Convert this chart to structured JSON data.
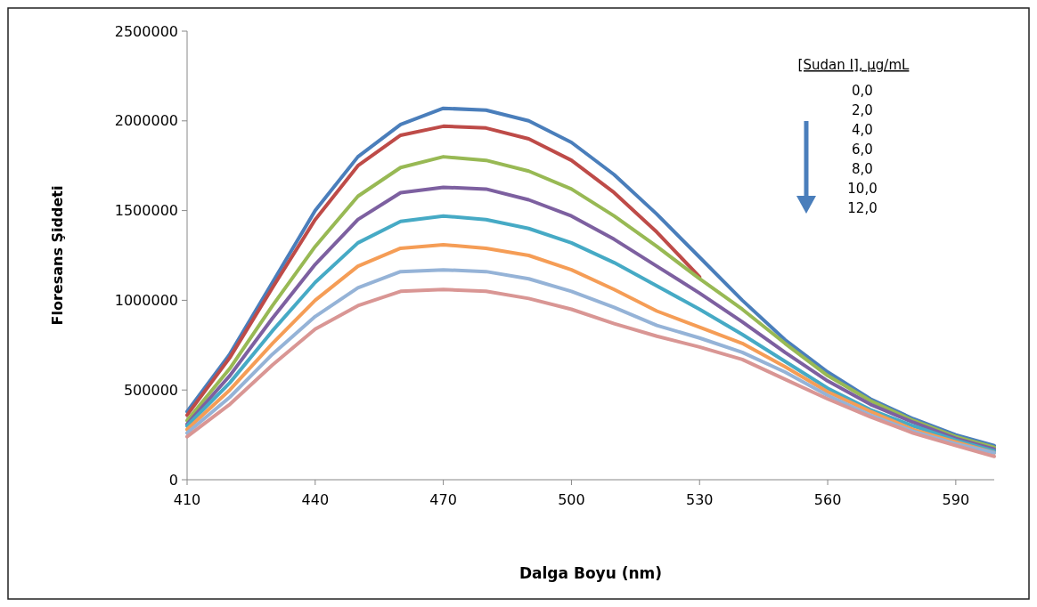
{
  "chart_data": {
    "type": "line",
    "xlabel": "Dalga Boyu (nm)",
    "ylabel": "Floresans Şiddeti",
    "legend_title": "[Sudan I], µg/mL",
    "annotations": [
      "0,0",
      "2,0",
      "4,0",
      "6,0",
      "8,0",
      "10,0",
      "12,0"
    ],
    "x": [
      410,
      420,
      430,
      440,
      450,
      460,
      470,
      480,
      490,
      500,
      510,
      520,
      530,
      540,
      550,
      560,
      570,
      580,
      590,
      599
    ],
    "xlim": [
      410,
      599
    ],
    "xticks": [
      410,
      440,
      470,
      500,
      530,
      560,
      590
    ],
    "ylim": [
      0,
      2500000
    ],
    "yticks": [
      0,
      500000,
      1000000,
      1500000,
      2000000,
      2500000
    ],
    "grid": false,
    "marker": "none",
    "line_style": "solid",
    "series": [
      {
        "color": "#4a7ebb",
        "values": [
          380000,
          700000,
          1100000,
          1500000,
          1800000,
          1980000,
          2070000,
          2060000,
          2000000,
          1880000,
          1700000,
          1480000,
          1240000,
          1000000,
          780000,
          600000,
          450000,
          340000,
          250000,
          190000
        ]
      },
      {
        "color": "#be4b48",
        "values": [
          360000,
          680000,
          1070000,
          1450000,
          1750000,
          1920000,
          1970000,
          1960000,
          1900000,
          1780000,
          1600000,
          1380000,
          1130000,
          null,
          null,
          null,
          null,
          null,
          null,
          null
        ]
      },
      {
        "color": "#98b954",
        "values": [
          330000,
          620000,
          970000,
          1300000,
          1580000,
          1740000,
          1800000,
          1780000,
          1720000,
          1620000,
          1470000,
          1300000,
          1120000,
          950000,
          760000,
          580000,
          440000,
          330000,
          240000,
          180000
        ]
      },
      {
        "color": "#7d60a0",
        "values": [
          310000,
          580000,
          900000,
          1200000,
          1450000,
          1600000,
          1630000,
          1620000,
          1560000,
          1470000,
          1340000,
          1190000,
          1040000,
          880000,
          710000,
          550000,
          420000,
          320000,
          230000,
          170000
        ]
      },
      {
        "color": "#46aac5",
        "values": [
          300000,
          540000,
          830000,
          1100000,
          1320000,
          1440000,
          1470000,
          1450000,
          1400000,
          1320000,
          1210000,
          1080000,
          950000,
          810000,
          660000,
          510000,
          390000,
          300000,
          220000,
          160000
        ]
      },
      {
        "color": "#f59d56",
        "values": [
          280000,
          500000,
          760000,
          1000000,
          1190000,
          1290000,
          1310000,
          1290000,
          1250000,
          1170000,
          1060000,
          940000,
          850000,
          760000,
          630000,
          490000,
          380000,
          280000,
          210000,
          150000
        ]
      },
      {
        "color": "#95b3d7",
        "values": [
          260000,
          460000,
          700000,
          910000,
          1070000,
          1160000,
          1170000,
          1160000,
          1120000,
          1050000,
          960000,
          860000,
          790000,
          710000,
          600000,
          470000,
          360000,
          270000,
          200000,
          150000
        ]
      },
      {
        "color": "#d99694",
        "values": [
          240000,
          420000,
          640000,
          840000,
          970000,
          1050000,
          1060000,
          1050000,
          1010000,
          950000,
          870000,
          800000,
          740000,
          670000,
          560000,
          450000,
          350000,
          260000,
          190000,
          130000
        ]
      }
    ]
  }
}
